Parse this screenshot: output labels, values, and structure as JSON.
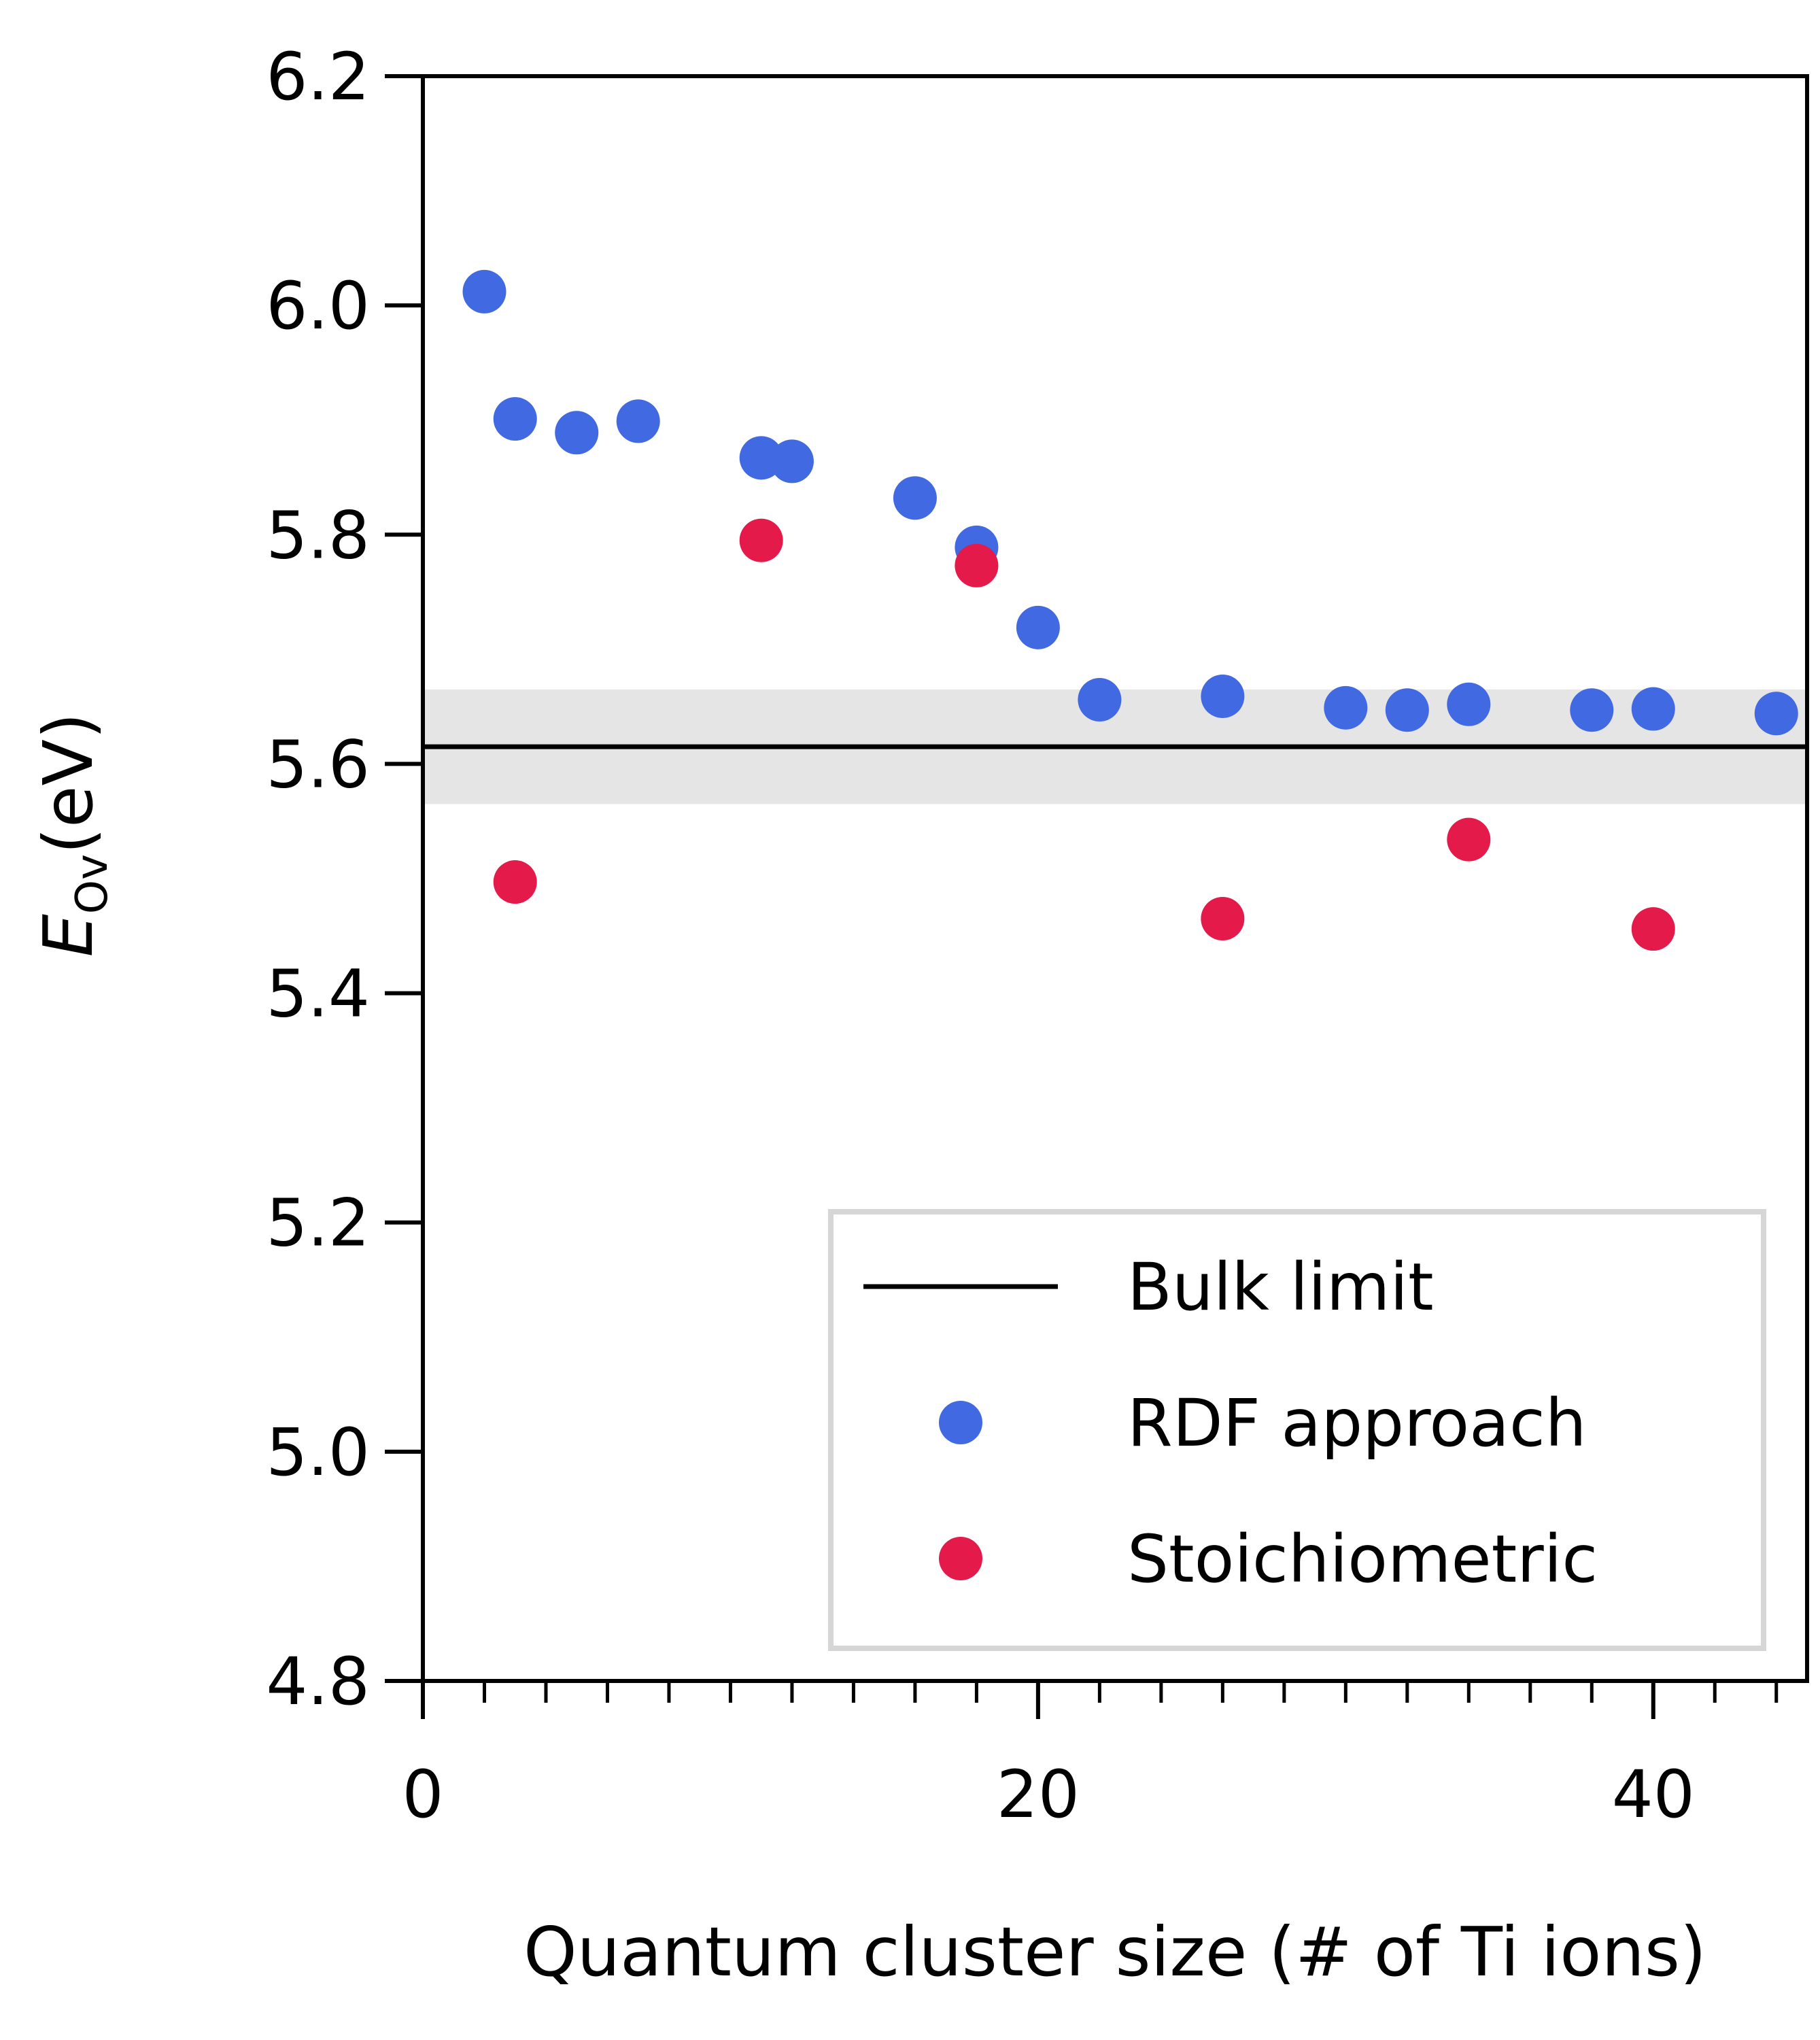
{
  "chart_data": {
    "type": "scatter",
    "xlabel": "Quantum cluster size (# of Ti ions)",
    "ylabel": {
      "symbol": "E",
      "subscript": "Ov",
      "unit": "(eV)"
    },
    "xlim": [
      0,
      45
    ],
    "ylim": [
      4.8,
      6.2
    ],
    "xticks": [
      "0",
      "20",
      "40"
    ],
    "xtick_values": [
      0,
      20,
      40
    ],
    "x_minor_step": 2,
    "yticks": [
      "4.8",
      "5.0",
      "5.2",
      "5.4",
      "5.6",
      "5.8",
      "6.0",
      "6.2"
    ],
    "ytick_values": [
      4.8,
      5.0,
      5.2,
      5.4,
      5.6,
      5.8,
      6.0,
      6.2
    ],
    "grid": false,
    "legend_position": "bottom-right",
    "bulk_limit": {
      "name": "Bulk limit",
      "value": 5.615,
      "band": [
        5.565,
        5.665
      ],
      "color": "#000000",
      "band_color": "#e5e5e5"
    },
    "series": [
      {
        "name": "RDF approach",
        "color": "#4169e1",
        "points": [
          {
            "x": 2,
            "y": 6.012
          },
          {
            "x": 3,
            "y": 5.901
          },
          {
            "x": 5,
            "y": 5.889
          },
          {
            "x": 7,
            "y": 5.899
          },
          {
            "x": 11,
            "y": 5.867
          },
          {
            "x": 12,
            "y": 5.864
          },
          {
            "x": 16,
            "y": 5.832
          },
          {
            "x": 18,
            "y": 5.789
          },
          {
            "x": 20,
            "y": 5.719
          },
          {
            "x": 22,
            "y": 5.656
          },
          {
            "x": 26,
            "y": 5.659
          },
          {
            "x": 30,
            "y": 5.649
          },
          {
            "x": 32,
            "y": 5.647
          },
          {
            "x": 34,
            "y": 5.652
          },
          {
            "x": 38,
            "y": 5.647
          },
          {
            "x": 40,
            "y": 5.648
          },
          {
            "x": 44,
            "y": 5.644
          }
        ]
      },
      {
        "name": "Stoichiometric",
        "color": "#e31a4a",
        "points": [
          {
            "x": 3,
            "y": 5.497
          },
          {
            "x": 11,
            "y": 5.795
          },
          {
            "x": 18,
            "y": 5.773
          },
          {
            "x": 26,
            "y": 5.465
          },
          {
            "x": 34,
            "y": 5.534
          },
          {
            "x": 40,
            "y": 5.456
          }
        ]
      }
    ]
  }
}
